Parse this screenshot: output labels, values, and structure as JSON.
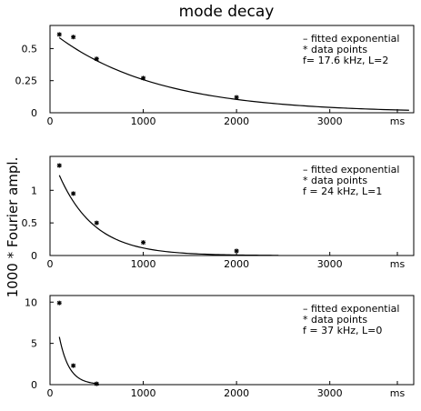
{
  "figure": {
    "title": "mode decay",
    "ylabel": "1000 * Fourier ampl."
  },
  "chart_data": [
    {
      "type": "scatter",
      "panel": "top",
      "xlim": [
        0,
        3900
      ],
      "ylim": [
        0,
        0.68
      ],
      "x_ticks": [
        "0",
        "1000",
        "2000",
        "3000"
      ],
      "x_unit_label": "ms",
      "y_ticks": [
        "0",
        "0.25",
        "0.5"
      ],
      "y_tick_values": [
        0,
        0.25,
        0.5
      ],
      "legend": [
        "– fitted exponential",
        "* data points",
        "f= 17.6 kHz, L=2"
      ],
      "series": [
        {
          "kind": "points",
          "x": [
            100,
            250,
            500,
            1000,
            2000
          ],
          "y": [
            0.61,
            0.59,
            0.42,
            0.27,
            0.12
          ]
        },
        {
          "kind": "curve",
          "x_start": 100,
          "x_end": 3850,
          "amplitude": 0.64,
          "decay_ms": 1100
        }
      ]
    },
    {
      "type": "scatter",
      "panel": "middle",
      "xlim": [
        0,
        3900
      ],
      "ylim": [
        0,
        1.52
      ],
      "x_ticks": [
        "0",
        "1000",
        "2000",
        "3000"
      ],
      "x_unit_label": "ms",
      "y_ticks": [
        "0",
        "0.5",
        "1"
      ],
      "y_tick_values": [
        0,
        0.5,
        1
      ],
      "legend": [
        "– fitted exponential",
        "* data points",
        "f = 24 kHz, L=1"
      ],
      "series": [
        {
          "kind": "points",
          "x": [
            100,
            250,
            500,
            1000,
            2000
          ],
          "y": [
            1.38,
            0.95,
            0.5,
            0.2,
            0.07
          ]
        },
        {
          "kind": "curve",
          "x_start": 100,
          "x_end": 2450,
          "amplitude": 1.6,
          "decay_ms": 380
        }
      ]
    },
    {
      "type": "scatter",
      "panel": "bottom",
      "xlim": [
        0,
        3900
      ],
      "ylim": [
        0,
        10.8
      ],
      "x_ticks": [
        "0",
        "1000",
        "2000",
        "3000"
      ],
      "x_unit_label": "ms",
      "y_ticks": [
        "0",
        "5",
        "10"
      ],
      "y_tick_values": [
        0,
        5,
        10
      ],
      "legend": [
        "– fitted exponential",
        "* data points",
        "f = 37 kHz, L=0"
      ],
      "series": [
        {
          "kind": "points",
          "x": [
            100,
            250,
            500
          ],
          "y": [
            9.9,
            2.3,
            0.1
          ]
        },
        {
          "kind": "curve",
          "x_start": 100,
          "x_end": 500,
          "amplitude": 15.0,
          "decay_ms": 105
        }
      ]
    }
  ]
}
